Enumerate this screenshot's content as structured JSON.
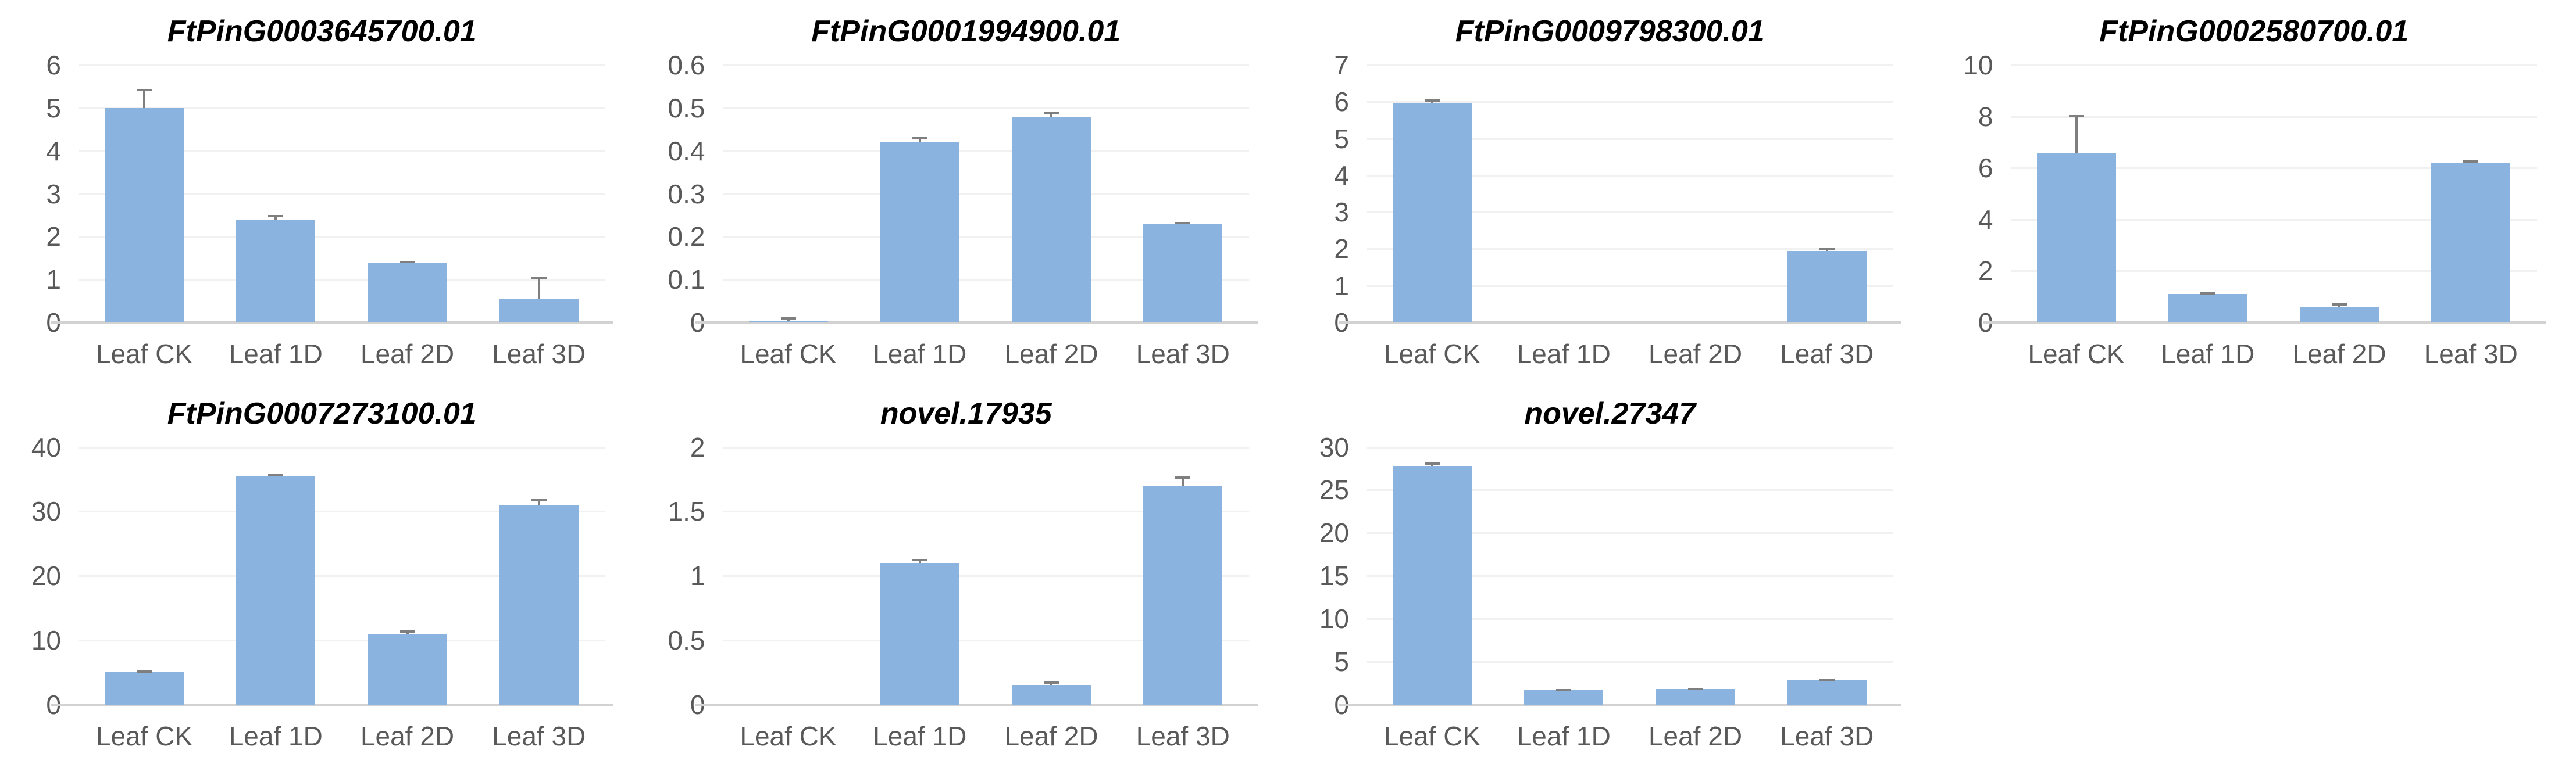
{
  "figure": {
    "background": "#FFFFFF",
    "layout": "2 rows x 4 columns, last cell empty"
  },
  "style": {
    "bar_color": "#8BB3DF",
    "grid_color": "#F1F1F1",
    "axis_color": "#D2D2D2",
    "error_bar_color": "#7F7F7F",
    "tick_label_color": "#595959",
    "title_color": "#000000"
  },
  "chart_data": [
    {
      "type": "bar",
      "title": "FtPinG0003645700.01",
      "categories": [
        "Leaf CK",
        "Leaf 1D",
        "Leaf 2D",
        "Leaf 3D"
      ],
      "values": [
        5.0,
        2.4,
        1.4,
        0.55
      ],
      "errors": [
        0.45,
        0.1,
        0.04,
        0.5
      ],
      "ylim": [
        0,
        6
      ],
      "yticks": [
        0,
        1,
        2,
        3,
        4,
        5,
        6
      ],
      "xlabel": "",
      "ylabel": "",
      "grid": true,
      "legend": false
    },
    {
      "type": "bar",
      "title": "FtPinG0001994900.01",
      "categories": [
        "Leaf CK",
        "Leaf 1D",
        "Leaf 2D",
        "Leaf 3D"
      ],
      "values": [
        0.004,
        0.42,
        0.48,
        0.23
      ],
      "errors": [
        0.008,
        0.012,
        0.012,
        0.005
      ],
      "ylim": [
        0,
        0.6
      ],
      "yticks": [
        0,
        0.1,
        0.2,
        0.3,
        0.4,
        0.5,
        0.6
      ],
      "xlabel": "",
      "ylabel": "",
      "grid": true,
      "legend": false
    },
    {
      "type": "bar",
      "title": "FtPinG0009798300.01",
      "categories": [
        "Leaf CK",
        "Leaf 1D",
        "Leaf 2D",
        "Leaf 3D"
      ],
      "values": [
        5.95,
        0,
        0,
        1.95
      ],
      "errors": [
        0.12,
        0,
        0,
        0.07
      ],
      "ylim": [
        0,
        7
      ],
      "yticks": [
        0,
        1,
        2,
        3,
        4,
        5,
        6,
        7
      ],
      "xlabel": "",
      "ylabel": "",
      "grid": true,
      "legend": false
    },
    {
      "type": "bar",
      "title": "FtPinG0002580700.01",
      "categories": [
        "Leaf CK",
        "Leaf 1D",
        "Leaf 2D",
        "Leaf 3D"
      ],
      "values": [
        6.6,
        1.1,
        0.6,
        6.2
      ],
      "errors": [
        1.45,
        0.08,
        0.15,
        0.1
      ],
      "ylim": [
        0,
        10
      ],
      "yticks": [
        0,
        2,
        4,
        6,
        8,
        10
      ],
      "xlabel": "",
      "ylabel": "",
      "grid": true,
      "legend": false
    },
    {
      "type": "bar",
      "title": "FtPinG0007273100.01",
      "categories": [
        "Leaf CK",
        "Leaf 1D",
        "Leaf 2D",
        "Leaf 3D"
      ],
      "values": [
        5,
        35.5,
        11,
        31
      ],
      "errors": [
        0.3,
        0.3,
        0.5,
        0.9
      ],
      "ylim": [
        0,
        40
      ],
      "yticks": [
        0,
        10,
        20,
        30,
        40
      ],
      "xlabel": "",
      "ylabel": "",
      "grid": true,
      "legend": false
    },
    {
      "type": "bar",
      "title": "novel.17935",
      "categories": [
        "Leaf CK",
        "Leaf 1D",
        "Leaf 2D",
        "Leaf 3D"
      ],
      "values": [
        0,
        1.1,
        0.15,
        1.7
      ],
      "errors": [
        0,
        0.03,
        0.03,
        0.07
      ],
      "ylim": [
        0,
        2
      ],
      "yticks": [
        0,
        0.5,
        1,
        1.5,
        2
      ],
      "xlabel": "",
      "ylabel": "",
      "grid": true,
      "legend": false
    },
    {
      "type": "bar",
      "title": "novel.27347",
      "categories": [
        "Leaf CK",
        "Leaf 1D",
        "Leaf 2D",
        "Leaf 3D"
      ],
      "values": [
        27.8,
        1.7,
        1.8,
        2.8
      ],
      "errors": [
        0.4,
        0.12,
        0.12,
        0.12
      ],
      "ylim": [
        0,
        30
      ],
      "yticks": [
        0,
        5,
        10,
        15,
        20,
        25,
        30
      ],
      "xlabel": "",
      "ylabel": "",
      "grid": true,
      "legend": false
    }
  ]
}
